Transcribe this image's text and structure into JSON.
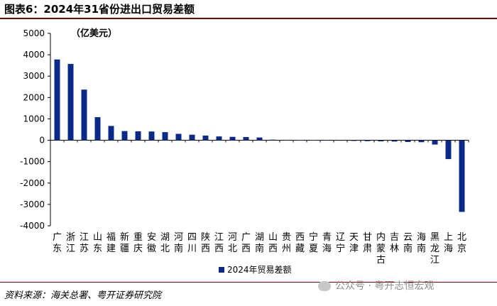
{
  "figure": {
    "title": "图表6：2024年31省份进出口贸易差额",
    "source": "资料来源：海关总署、粤开证券研究院",
    "watermark": "公众号 · 粤开志恒宏观"
  },
  "chart_data": {
    "type": "bar",
    "unit_label": "（亿美元）",
    "ylim": [
      -4000,
      5000
    ],
    "yticks": [
      5000,
      4000,
      3000,
      2000,
      1000,
      0,
      -1000,
      -2000,
      -3000,
      -4000
    ],
    "categories": [
      "广东",
      "浙江",
      "江苏",
      "山东",
      "福建",
      "新疆",
      "重庆",
      "安徽",
      "湖北",
      "河南",
      "四川",
      "陕西",
      "江西",
      "河北",
      "广西",
      "湖南",
      "山西",
      "贵州",
      "西藏",
      "宁夏",
      "青海",
      "辽宁",
      "天津",
      "甘肃",
      "内蒙古",
      "吉林",
      "云南",
      "海南",
      "黑龙江",
      "上海",
      "北京"
    ],
    "series": [
      {
        "name": "2024年贸易差额",
        "values": [
          3780,
          3570,
          2370,
          1080,
          670,
          430,
          420,
          410,
          380,
          300,
          260,
          220,
          180,
          160,
          150,
          130,
          30,
          20,
          10,
          5,
          3,
          -20,
          -30,
          -40,
          -50,
          -60,
          -80,
          -90,
          -200,
          -880,
          -3350
        ]
      }
    ],
    "color": "#0a2a8a",
    "legend_position": "bottom",
    "grid": false
  }
}
